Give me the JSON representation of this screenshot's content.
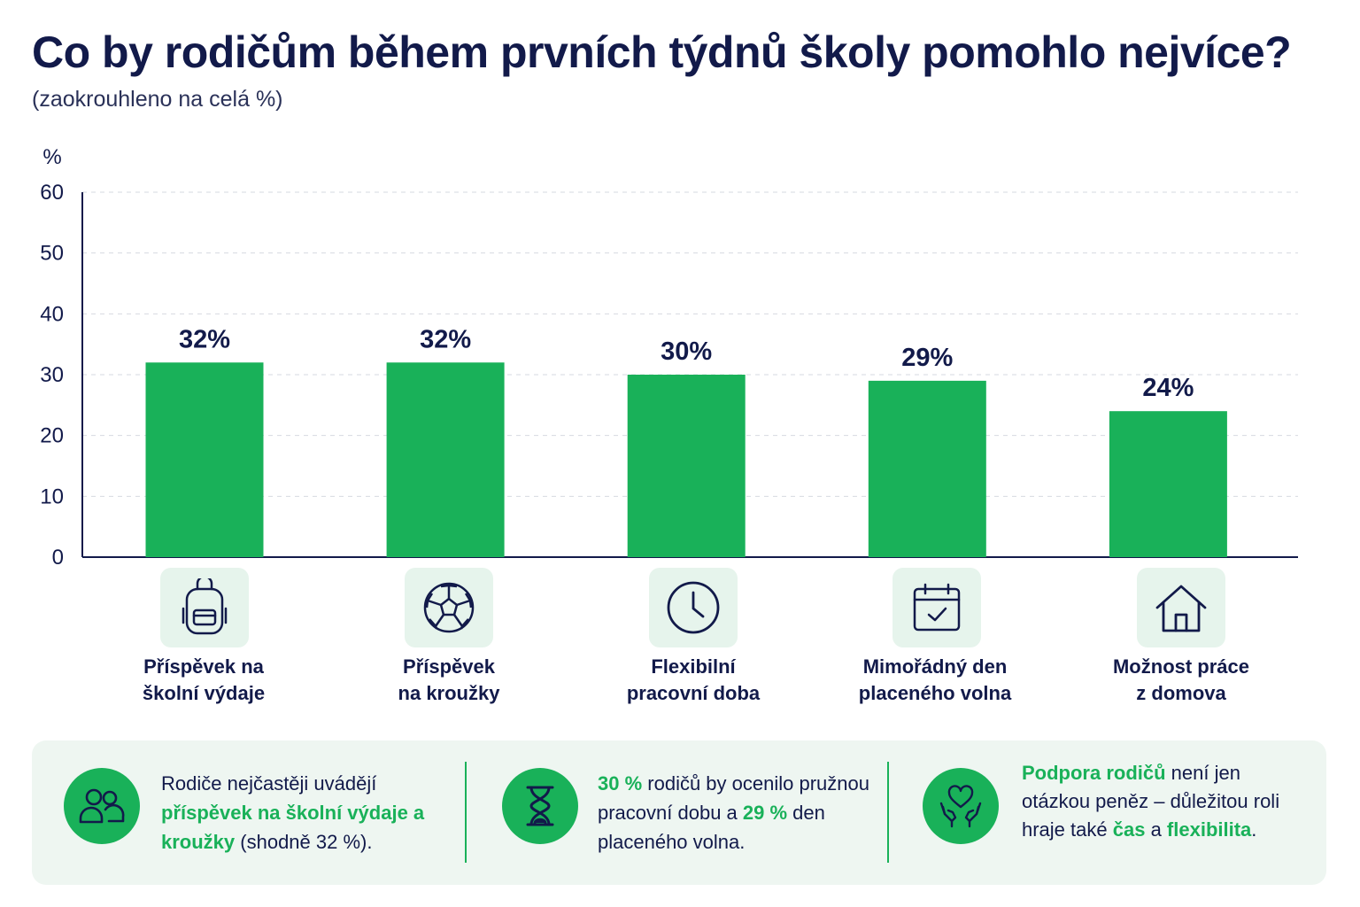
{
  "chart_data": {
    "type": "bar",
    "title": "Co by rodičům během prvních týdnů školy pomohlo nejvíce?",
    "subtitle": "(zaokrouhleno na celá %)",
    "ylabel": "%",
    "ylim": [
      0,
      60
    ],
    "yticks": [
      "0",
      "10",
      "20",
      "30",
      "40",
      "50",
      "60"
    ],
    "grid": true,
    "bar_color": "#19b159",
    "categories": [
      "Příspěvek na\nškolní výdaje",
      "Příspěvek\nna kroužky",
      "Flexibilní\npracovní doba",
      "Mimořádný den\nplaceného volna",
      "Možnost práce\nz domova"
    ],
    "values": [
      32,
      32,
      30,
      29,
      24
    ],
    "value_labels": [
      "32%",
      "32%",
      "30%",
      "29%",
      "24%"
    ],
    "icons": [
      "backpack-icon",
      "football-icon",
      "clock-icon",
      "calendar-check-icon",
      "house-icon"
    ]
  },
  "colors": {
    "accent": "#19b159",
    "text": "#121a4a",
    "icon_bg": "#e6f4ec",
    "panel_bg": "#eef6f1"
  },
  "info_panel": {
    "items": [
      {
        "icon": "people-icon",
        "parts": [
          {
            "text": "Rodiče nejčastěji uvádějí ",
            "hl": false
          },
          {
            "text": "příspěvek na školní výdaje a kroužky",
            "hl": true
          },
          {
            "text": " (shodně 32 %).",
            "hl": false
          }
        ]
      },
      {
        "icon": "hourglass-icon",
        "parts": [
          {
            "text": "30 %",
            "hl": true
          },
          {
            "text": " rodičů by ocenilo pružnou pracovní dobu a ",
            "hl": false
          },
          {
            "text": "29 %",
            "hl": true
          },
          {
            "text": " den placeného volna.",
            "hl": false
          }
        ]
      },
      {
        "icon": "heart-hands-icon",
        "parts": [
          {
            "text": "Podpora rodičů",
            "hl": true
          },
          {
            "text": " není jen otázkou peněz – důležitou roli hraje také ",
            "hl": false
          },
          {
            "text": "čas",
            "hl": true
          },
          {
            "text": " a ",
            "hl": false
          },
          {
            "text": "flexibilita",
            "hl": true
          },
          {
            "text": ".",
            "hl": false
          }
        ]
      }
    ]
  }
}
